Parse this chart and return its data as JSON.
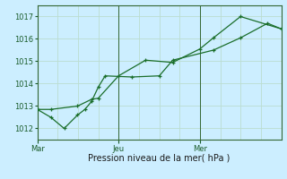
{
  "xlabel": "Pression niveau de la mer( hPa )",
  "bg_color": "#cceeff",
  "grid_color": "#bbddd0",
  "line_color": "#1a6e2a",
  "ylim": [
    1011.5,
    1017.5
  ],
  "yticks": [
    1012,
    1013,
    1014,
    1015,
    1016,
    1017
  ],
  "x_tick_labels": [
    "Mar",
    "Jeu",
    "Mer"
  ],
  "vline_x": [
    0.333,
    0.667
  ],
  "line1_x": [
    0.0,
    0.055,
    0.11,
    0.165,
    0.195,
    0.222,
    0.25,
    0.278,
    0.388,
    0.5,
    0.555,
    0.722,
    0.833,
    0.944,
    1.0
  ],
  "line1_y": [
    1012.85,
    1012.5,
    1012.0,
    1012.6,
    1012.85,
    1013.2,
    1013.85,
    1014.35,
    1014.3,
    1014.35,
    1015.05,
    1015.5,
    1016.05,
    1016.7,
    1016.45
  ],
  "line2_x": [
    0.0,
    0.055,
    0.165,
    0.222,
    0.25,
    0.333,
    0.444,
    0.555,
    0.666,
    0.722,
    0.833,
    1.0
  ],
  "line2_y": [
    1012.85,
    1012.85,
    1013.0,
    1013.3,
    1013.35,
    1014.35,
    1015.05,
    1014.95,
    1015.55,
    1016.05,
    1017.0,
    1016.45
  ],
  "ytick_fontsize": 6,
  "xtick_fontsize": 6,
  "xlabel_fontsize": 7
}
